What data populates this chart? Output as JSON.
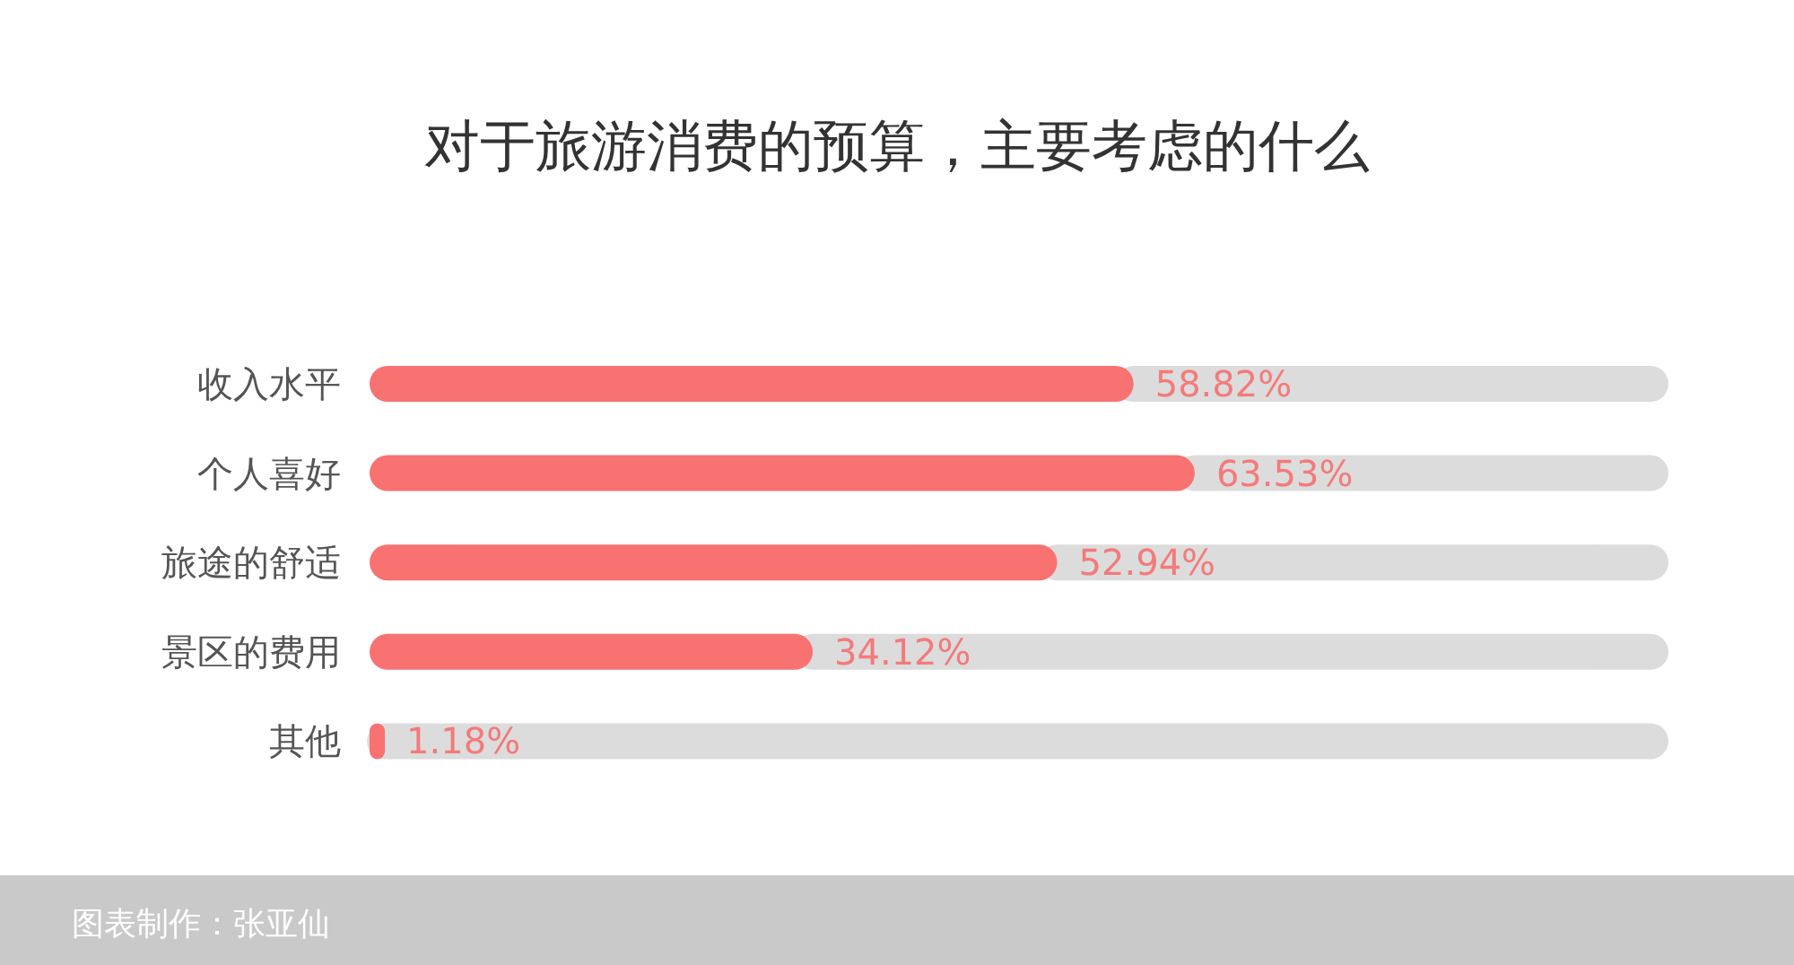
{
  "chart_data": {
    "type": "bar",
    "orientation": "horizontal",
    "title": "对于旅游消费的预算，主要考虑的什么",
    "categories": [
      "收入水平",
      "个人喜好",
      "旅途的舒适",
      "景区的费用",
      "其他"
    ],
    "values": [
      58.82,
      63.53,
      52.94,
      34.12,
      1.18
    ],
    "value_labels": [
      "58.82%",
      "63.53%",
      "52.94%",
      "34.12%",
      "1.18%"
    ],
    "color": "#f87272",
    "xlim": [
      0,
      100
    ],
    "tick_labels": "y",
    "annotations": [
      "图表制作：张亚仙"
    ]
  }
}
